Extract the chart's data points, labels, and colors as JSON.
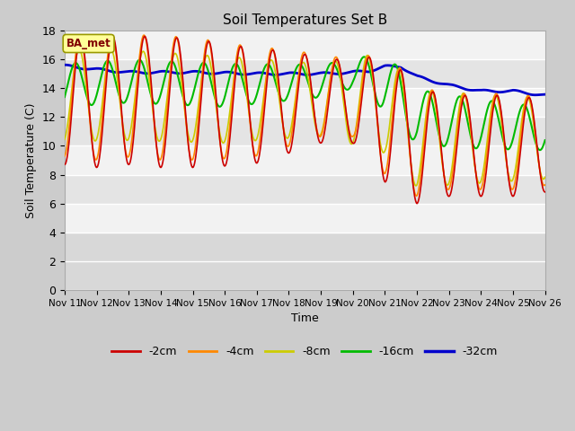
{
  "title": "Soil Temperatures Set B",
  "xlabel": "Time",
  "ylabel": "Soil Temperature (C)",
  "annotation": "BA_met",
  "ylim": [
    0,
    18
  ],
  "yticks": [
    0,
    2,
    4,
    6,
    8,
    10,
    12,
    14,
    16,
    18
  ],
  "xtick_labels": [
    "Nov 11",
    "Nov 12",
    "Nov 13",
    "Nov 14",
    "Nov 15",
    "Nov 16",
    "Nov 17",
    "Nov 18",
    "Nov 19",
    "Nov 20",
    "Nov 21",
    "Nov 22",
    "Nov 23",
    "Nov 24",
    "Nov 25",
    "Nov 26"
  ],
  "legend_labels": [
    "-2cm",
    "-4cm",
    "-8cm",
    "-16cm",
    "-32cm"
  ],
  "line_colors": [
    "#cc0000",
    "#ff8800",
    "#cccc00",
    "#00bb00",
    "#0000cc"
  ],
  "line_widths": [
    1.2,
    1.2,
    1.2,
    1.5,
    2.0
  ],
  "fig_bg": "#cccccc",
  "plot_bg_light": "#f0f0f0",
  "plot_bg_dark": "#d8d8d8",
  "band_light": "#f0f0f0",
  "band_dark": "#e0e0e0"
}
